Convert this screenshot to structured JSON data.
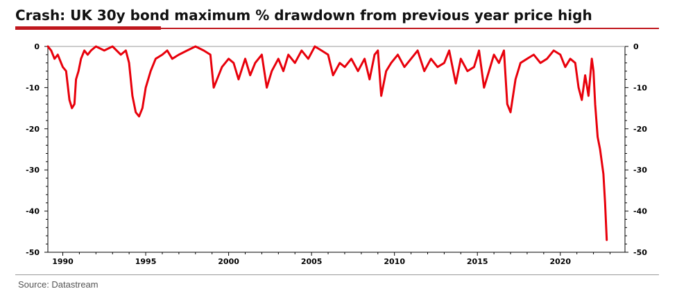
{
  "header": {
    "title": "Crash: UK 30y bond maximum % drawdown from previous year price high"
  },
  "footer": {
    "source": "Source: Datastream"
  },
  "colors": {
    "series": "#e8000b",
    "accent_rule": "#c0171d"
  },
  "chart_data": {
    "type": "line",
    "title": "Crash: UK 30y bond maximum % drawdown from previous year price high",
    "xlabel": "",
    "ylabel": "",
    "xlim": [
      1989.1,
      2023.9
    ],
    "ylim": [
      -50,
      0
    ],
    "x_ticks": [
      1990,
      1995,
      2000,
      2005,
      2010,
      2015,
      2020
    ],
    "y_ticks": [
      0,
      -10,
      -20,
      -30,
      -40,
      -50
    ],
    "y_axis_both_sides": true,
    "grid": false,
    "series": [
      {
        "name": "",
        "color": "#e8000b",
        "x": [
          1989.1,
          1989.3,
          1989.5,
          1989.7,
          1989.9,
          1990.0,
          1990.2,
          1990.4,
          1990.55,
          1990.7,
          1990.8,
          1990.95,
          1991.1,
          1991.3,
          1991.5,
          1991.7,
          1992.0,
          1992.5,
          1993.0,
          1993.5,
          1993.8,
          1994.0,
          1994.2,
          1994.4,
          1994.6,
          1994.8,
          1995.0,
          1995.3,
          1995.6,
          1996.0,
          1996.3,
          1996.6,
          1997.0,
          1997.5,
          1998.0,
          1998.5,
          1998.9,
          1999.1,
          1999.3,
          1999.6,
          2000.0,
          2000.3,
          2000.6,
          2001.0,
          2001.3,
          2001.6,
          2002.0,
          2002.3,
          2002.6,
          2003.0,
          2003.3,
          2003.6,
          2004.0,
          2004.4,
          2004.8,
          2005.2,
          2005.6,
          2006.0,
          2006.3,
          2006.7,
          2007.0,
          2007.4,
          2007.8,
          2008.2,
          2008.5,
          2008.8,
          2009.0,
          2009.2,
          2009.5,
          2009.8,
          2010.2,
          2010.6,
          2011.0,
          2011.4,
          2011.8,
          2012.2,
          2012.6,
          2013.0,
          2013.3,
          2013.7,
          2014.0,
          2014.4,
          2014.8,
          2015.1,
          2015.4,
          2015.7,
          2016.0,
          2016.3,
          2016.6,
          2016.8,
          2017.0,
          2017.3,
          2017.6,
          2018.0,
          2018.4,
          2018.8,
          2019.2,
          2019.6,
          2020.0,
          2020.3,
          2020.6,
          2020.9,
          2021.1,
          2021.3,
          2021.5,
          2021.7,
          2021.9,
          2022.0,
          2022.1,
          2022.25,
          2022.4,
          2022.5,
          2022.6,
          2022.7,
          2022.8
        ],
        "values": [
          0,
          -1,
          -3,
          -2,
          -4,
          -5,
          -6,
          -13,
          -15,
          -14,
          -8,
          -6,
          -3,
          -1,
          -2,
          -1,
          0,
          -1,
          0,
          -2,
          -1,
          -4,
          -12,
          -16,
          -17,
          -15,
          -10,
          -6,
          -3,
          -2,
          -1,
          -3,
          -2,
          -1,
          0,
          -1,
          -2,
          -10,
          -8,
          -5,
          -3,
          -4,
          -8,
          -3,
          -7,
          -4,
          -2,
          -10,
          -6,
          -3,
          -6,
          -2,
          -4,
          -1,
          -3,
          0,
          -1,
          -2,
          -7,
          -4,
          -5,
          -3,
          -6,
          -3,
          -8,
          -2,
          -1,
          -12,
          -6,
          -4,
          -2,
          -5,
          -3,
          -1,
          -6,
          -3,
          -5,
          -4,
          -1,
          -9,
          -3,
          -6,
          -5,
          -1,
          -10,
          -6,
          -2,
          -4,
          -1,
          -14,
          -16,
          -8,
          -4,
          -3,
          -2,
          -4,
          -3,
          -1,
          -2,
          -5,
          -3,
          -4,
          -10,
          -13,
          -7,
          -12,
          -3,
          -6,
          -14,
          -22,
          -25,
          -28,
          -31,
          -38,
          -47
        ]
      }
    ]
  }
}
